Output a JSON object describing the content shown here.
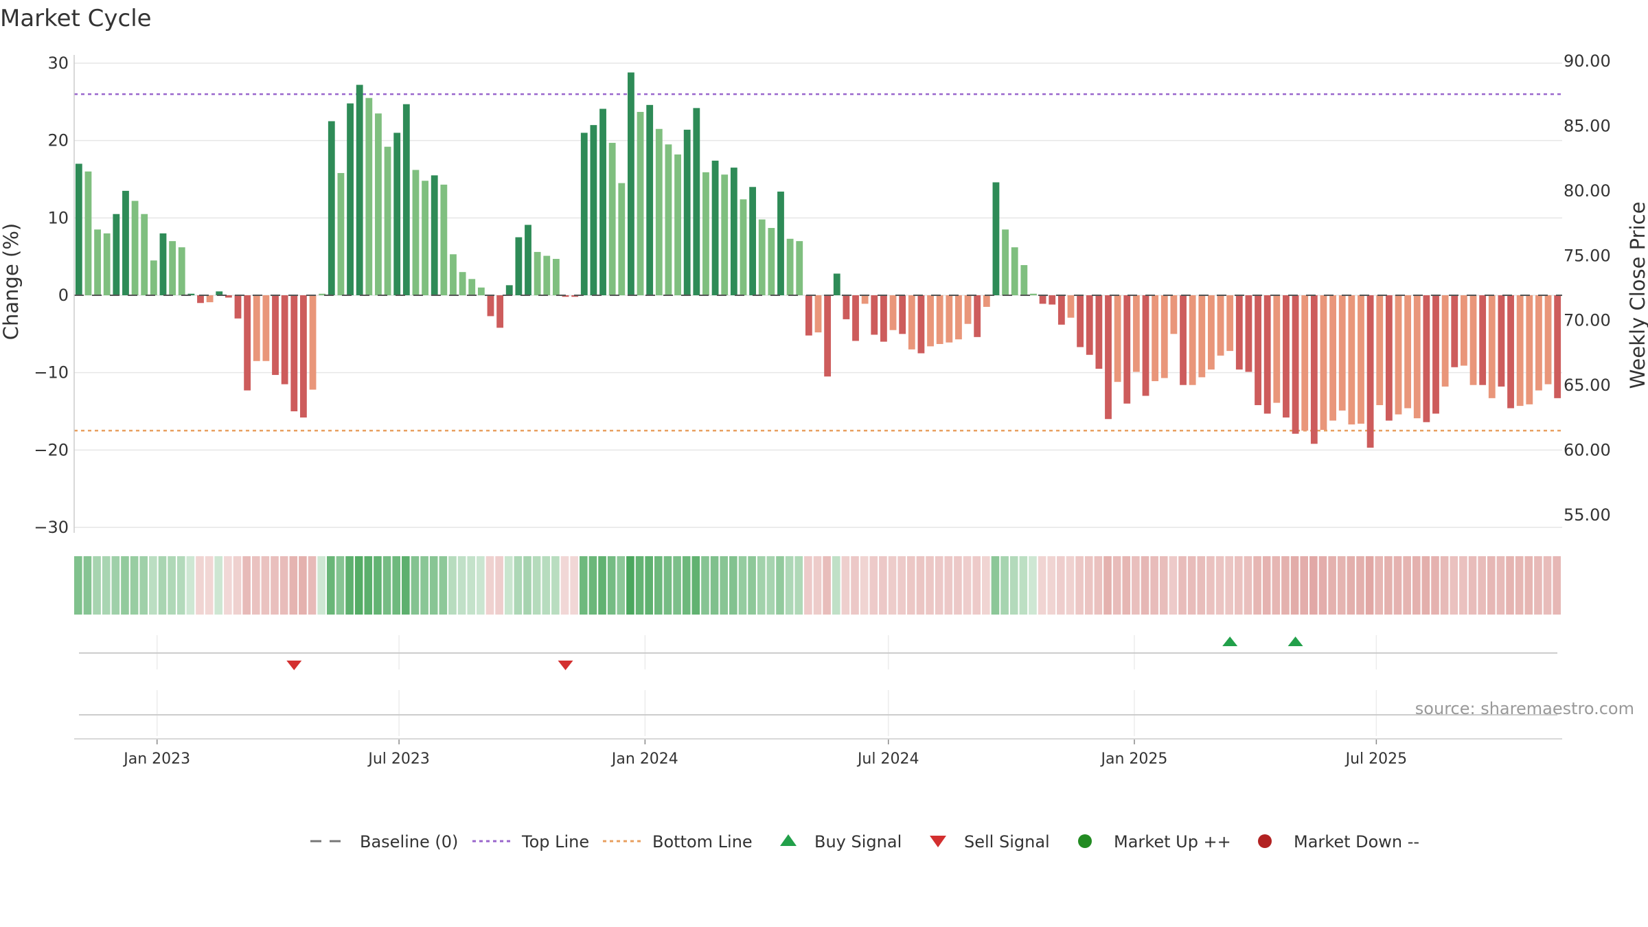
{
  "title": "Market Cycle",
  "source": "source: sharemaestro.com",
  "chart_data": {
    "type": "bar",
    "title": "Market Cycle",
    "ylabel_left": "Change (%)",
    "ylabel_right": "Weekly Close Price",
    "y_left_range": [
      -30,
      30
    ],
    "y_left_ticks": [
      30,
      20,
      10,
      0,
      -10,
      -20,
      -30
    ],
    "y_left_tick_labels": [
      "30",
      "20",
      "10",
      "0",
      "−10",
      "−20",
      "−30"
    ],
    "y_right_range": [
      55,
      90
    ],
    "y_right_tick_labels": [
      "90.00",
      "85.00",
      "80.00",
      "75.00",
      "70.00",
      "65.00",
      "60.00",
      "55.00"
    ],
    "x_tick_labels": [
      "Jan 2023",
      "Jul 2023",
      "Jan 2024",
      "Jul 2024",
      "Jan 2025",
      "Jul 2025"
    ],
    "start_week": "2022-10-31",
    "top_line": 26,
    "bottom_line": -17.5,
    "colors": {
      "strong_up": "#2e8b57",
      "weak_up": "#7fbf7f",
      "strong_down": "#cd5c5c",
      "weak_down": "#e9967a",
      "top_line": "#9966cc",
      "bottom_line": "#e8a060",
      "baseline": "#555555",
      "buy": "#22a04a",
      "sell": "#d32f2f",
      "market_up": "#228b22",
      "market_down": "#b22222"
    },
    "values": [
      17,
      16,
      8.5,
      8,
      10.5,
      13.5,
      12.2,
      10.5,
      4.5,
      8,
      7,
      6.2,
      0.2,
      -1,
      -0.9,
      0.5,
      -0.3,
      -3,
      -12.3,
      -8.5,
      -8.5,
      -10.3,
      -11.5,
      -15,
      -15.8,
      -12.2,
      0.2,
      22.5,
      15.8,
      24.8,
      27.2,
      25.5,
      23.5,
      19.2,
      21,
      24.7,
      16.2,
      14.8,
      15.5,
      14.3,
      5.3,
      3,
      2.1,
      1,
      -2.7,
      -4.2,
      1.3,
      7.5,
      9.1,
      5.6,
      5.1,
      4.7,
      -0.2,
      -0.2,
      21,
      22,
      24.1,
      19.7,
      14.5,
      28.8,
      23.7,
      24.6,
      21.5,
      19.5,
      18.2,
      21.4,
      24.2,
      15.9,
      17.4,
      15.6,
      16.5,
      12.4,
      14,
      9.8,
      8.7,
      13.4,
      7.3,
      7,
      -5.2,
      -4.8,
      -10.5,
      2.8,
      -3.1,
      -5.9,
      -1.1,
      -5.1,
      -6,
      -4.5,
      -5,
      -7,
      -7.5,
      -6.6,
      -6.3,
      -6.1,
      -5.7,
      -3.7,
      -5.4,
      -1.5,
      14.6,
      8.5,
      6.2,
      3.9,
      0.2,
      -1.1,
      -1.2,
      -3.8,
      -2.9,
      -6.7,
      -7.7,
      -9.5,
      -16,
      -11.2,
      -14,
      -9.9,
      -13,
      -11.1,
      -10.7,
      -5,
      -11.6,
      -11.6,
      -10.6,
      -9.6,
      -7.8,
      -7.2,
      -9.6,
      -9.9,
      -14.2,
      -15.3,
      -13.9,
      -15.8,
      -17.9,
      -17.5,
      -19.2,
      -17.4,
      -16.2,
      -14.9,
      -16.7,
      -16.6,
      -19.7,
      -14.2,
      -16.2,
      -15.4,
      -14.6,
      -15.9,
      -16.4,
      -15.3,
      -11.8,
      -9.3,
      -9.1,
      -11.6,
      -11.6,
      -13.3,
      -11.8,
      -14.6,
      -14.3,
      -14.1,
      -12.3,
      -11.5,
      -13.3
    ],
    "bar_strength": [
      1,
      0,
      0,
      0,
      1,
      1,
      0,
      0,
      0,
      1,
      0,
      0,
      1,
      1,
      0,
      1,
      1,
      1,
      1,
      0,
      0,
      1,
      1,
      1,
      1,
      0,
      0,
      1,
      0,
      1,
      1,
      0,
      0,
      0,
      1,
      1,
      0,
      0,
      1,
      0,
      0,
      0,
      0,
      0,
      1,
      1,
      1,
      1,
      1,
      0,
      0,
      0,
      1,
      1,
      1,
      1,
      1,
      0,
      0,
      1,
      0,
      1,
      0,
      0,
      0,
      1,
      1,
      0,
      1,
      0,
      1,
      0,
      1,
      0,
      0,
      1,
      0,
      0,
      1,
      0,
      1,
      1,
      1,
      1,
      0,
      1,
      1,
      0,
      1,
      0,
      1,
      0,
      0,
      0,
      0,
      0,
      1,
      0,
      1,
      0,
      0,
      0,
      0,
      1,
      1,
      1,
      0,
      1,
      1,
      1,
      1,
      0,
      1,
      0,
      1,
      0,
      0,
      0,
      1,
      0,
      0,
      0,
      0,
      0,
      1,
      1,
      1,
      1,
      0,
      1,
      1,
      0,
      1,
      0,
      0,
      0,
      0,
      0,
      1,
      0,
      1,
      0,
      0,
      0,
      1,
      1,
      0,
      1,
      0,
      0,
      1,
      0,
      1,
      1,
      0,
      0,
      0,
      0,
      1
    ],
    "signals": [
      {
        "type": "sell",
        "date": "2023-04-10"
      },
      {
        "type": "sell",
        "date": "2023-10-30"
      },
      {
        "type": "buy",
        "date": "2025-03-10"
      },
      {
        "type": "buy",
        "date": "2025-04-28"
      }
    ],
    "legend": [
      {
        "key": "baseline",
        "label": "Baseline (0)"
      },
      {
        "key": "top",
        "label": "Top Line"
      },
      {
        "key": "bottom",
        "label": "Bottom Line"
      },
      {
        "key": "buy",
        "label": "Buy Signal"
      },
      {
        "key": "sell",
        "label": "Sell Signal"
      },
      {
        "key": "mup",
        "label": "Market Up ++"
      },
      {
        "key": "mdown",
        "label": "Market Down --"
      }
    ],
    "legend_position": "bottom-center",
    "grid": true
  }
}
